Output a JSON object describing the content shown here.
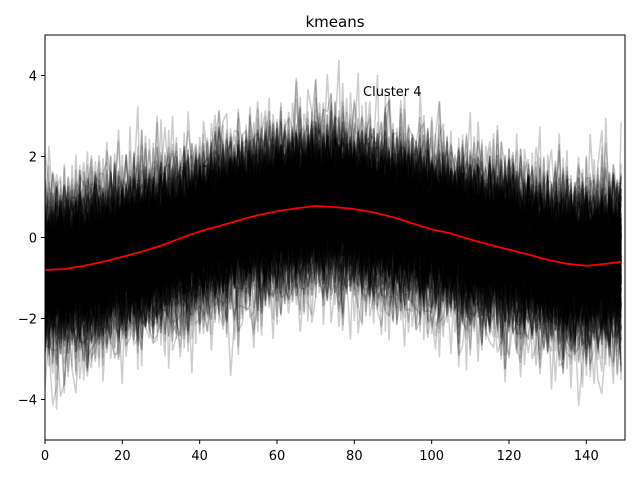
{
  "chart_data": {
    "type": "line",
    "title": "kmeans",
    "annotation": "Cluster 4",
    "xlabel": "",
    "ylabel": "",
    "xlim": [
      0,
      150
    ],
    "ylim": [
      -5,
      5
    ],
    "x_ticks": [
      0,
      20,
      40,
      60,
      80,
      100,
      120,
      140
    ],
    "y_ticks": [
      -4,
      -2,
      0,
      2,
      4
    ],
    "grid": false,
    "legend": "none",
    "background_series": {
      "description": "many overlapping individual time series",
      "color": "#000000",
      "opacity": 0.2,
      "count_approx": 300,
      "spread_std": 1.0
    },
    "centroid_series": {
      "color": "#ff0000",
      "x": [
        0,
        5,
        10,
        15,
        20,
        25,
        30,
        35,
        40,
        45,
        50,
        55,
        60,
        65,
        70,
        75,
        80,
        85,
        90,
        95,
        100,
        105,
        110,
        115,
        120,
        125,
        130,
        135,
        140,
        145,
        149
      ],
      "y": [
        -0.8,
        -0.78,
        -0.7,
        -0.6,
        -0.48,
        -0.35,
        -0.2,
        -0.02,
        0.15,
        0.28,
        0.42,
        0.55,
        0.65,
        0.72,
        0.78,
        0.75,
        0.7,
        0.62,
        0.5,
        0.35,
        0.2,
        0.1,
        -0.05,
        -0.18,
        -0.3,
        -0.42,
        -0.55,
        -0.65,
        -0.7,
        -0.65,
        -0.6
      ]
    }
  }
}
